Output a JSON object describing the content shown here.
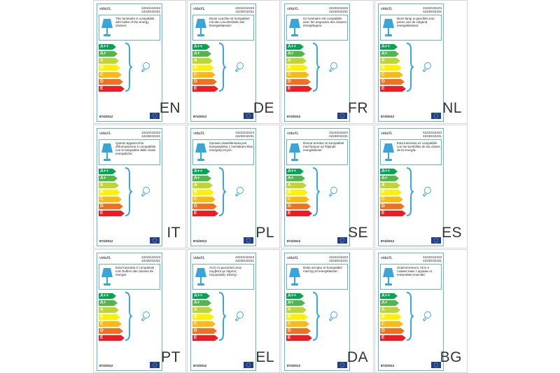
{
  "colors": {
    "frame": "#5fb5d8",
    "eu_flag": "#1c3f94",
    "energy_classes": [
      "#00a650",
      "#50b848",
      "#bed630",
      "#fff200",
      "#fdb913",
      "#f37021",
      "#ed1c24"
    ]
  },
  "energy_classes": [
    "A++",
    "A+",
    "A",
    "B",
    "C",
    "D",
    "E"
  ],
  "icons": {
    "lamp": "lamp-icon",
    "bulb": "bulb-icon",
    "brace": "brace-icon",
    "flag": "eu-flag-icon"
  },
  "labels": [
    {
      "brand": "vidaXL",
      "codes": [
        "42222/42223",
        "42230/42231"
      ],
      "text": "This luminaire is compatible with bulbs of the energy classes:",
      "regulation": "874/2012",
      "lang": "EN"
    },
    {
      "brand": "vidaXL",
      "codes": [
        "42222/42223",
        "42230/42231"
      ],
      "text": "Diese Leuchte ist kompatibel mit den Leuchtmitteln der Energieklassen:",
      "regulation": "874/2012",
      "lang": "DE"
    },
    {
      "brand": "vidaXL",
      "codes": [
        "42222/42223",
        "42230/42231"
      ],
      "text": "Ce luminaire est compatible avec les ampoules des classes énergétiques:",
      "regulation": "874/2012",
      "lang": "FR"
    },
    {
      "brand": "vidaXL",
      "codes": [
        "42222/42223",
        "42230/42231"
      ],
      "text": "Deze lamp is geschikt voor peren van de volgend energieklassen:",
      "regulation": "874/2012",
      "lang": "NL"
    },
    {
      "brand": "vidaXL",
      "codes": [
        "42222/42223",
        "42230/42231"
      ],
      "text": "Questo apparecchio d'illuminazione è compatibile con le lampadine delle classi energetiche:",
      "regulation": "874/2012",
      "lang": "IT"
    },
    {
      "brand": "vidaXL",
      "codes": [
        "42222/42223",
        "42230/42231"
      ],
      "text": "Oprawa oświetleniowa jest kompatybilna z żarówkami klas energetycznych:",
      "regulation": "874/2012",
      "lang": "PL"
    },
    {
      "brand": "vidaXL",
      "codes": [
        "42222/42223",
        "42230/42231"
      ],
      "text": "Denna armatur är kompatibel med lampor av följande energiklasser:",
      "regulation": "874/2012",
      "lang": "SE"
    },
    {
      "brand": "vidaXL",
      "codes": [
        "42222/42223",
        "42230/42231"
      ],
      "text": "Esta luminaria es compatible con las bombillas de las clases de la energía:",
      "regulation": "874/2012",
      "lang": "ES"
    },
    {
      "brand": "vidaXL",
      "codes": [
        "42222/42223",
        "42230/42231"
      ],
      "text": "Esta luminária é compatível com bulbos das classes de energia:",
      "regulation": "874/2012",
      "lang": "PT"
    },
    {
      "brand": "vidaXL",
      "codes": [
        "42222/42223",
        "42230/42231"
      ],
      "text": "Αυτό το φωτιστικό είναι συμβατό με λάμπες ενεργειακής κλάσης:",
      "regulation": "874/2012",
      "lang": "EL"
    },
    {
      "brand": "vidaXL",
      "codes": [
        "42222/42223",
        "42230/42231"
      ],
      "text": "Dette armatur er kompatibel med lyg af energiklasser:",
      "regulation": "874/2012",
      "lang": "DA"
    },
    {
      "brand": "vidaXL",
      "codes": [
        "42222/42223",
        "42230/42231"
      ],
      "text": "Осветителното тяло е съвместимо с крушки от енергийни класове:",
      "regulation": "874/2012",
      "lang": "BG"
    }
  ]
}
